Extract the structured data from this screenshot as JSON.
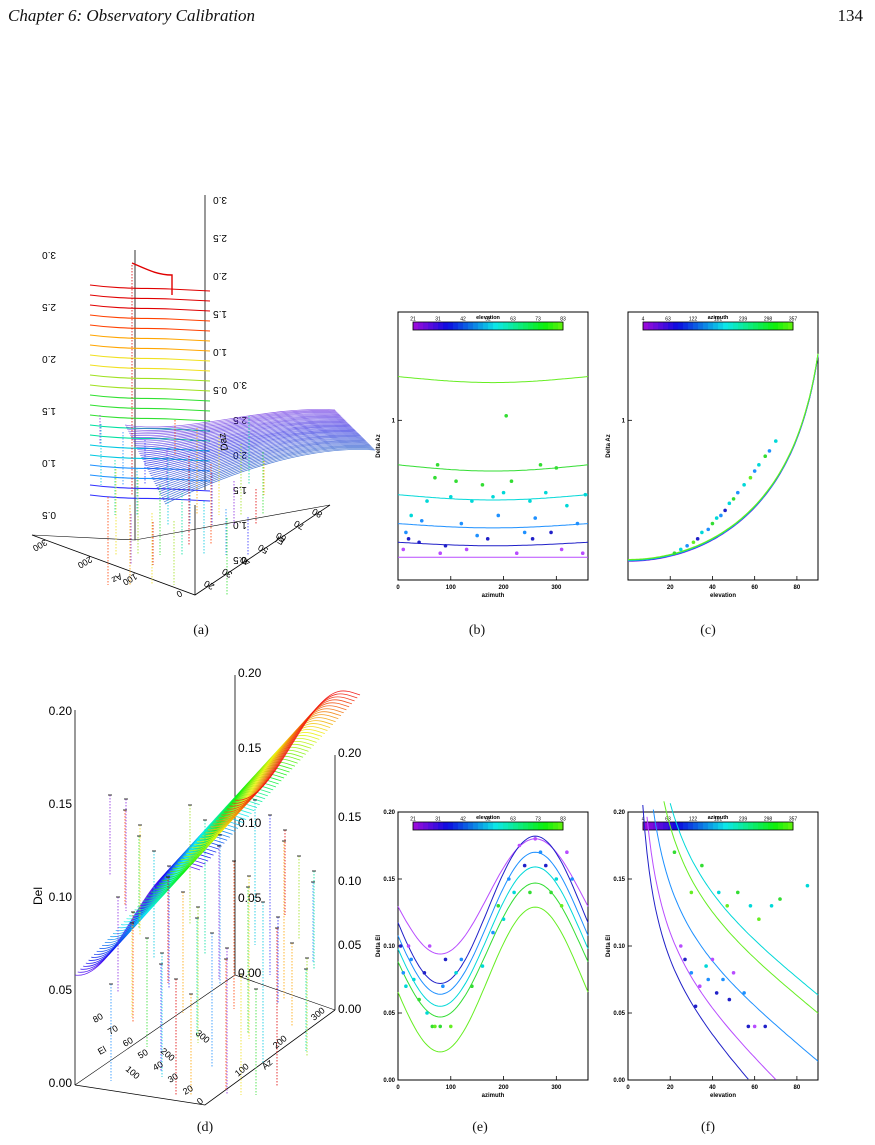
{
  "header": {
    "chapter": "Chapter 6:  Observatory Calibration",
    "page_number": "134"
  },
  "captions": [
    "(a)",
    "(b)",
    "(c)",
    "(d)",
    "(e)",
    "(f)"
  ],
  "panel_a": {
    "z_ticks_left": [
      "0.5",
      "1.0",
      "1.5",
      "2.0",
      "2.5",
      "3.0"
    ],
    "z_ticks_back": [
      "0.5",
      "1.0",
      "1.5",
      "2.0",
      "2.5",
      "3.0"
    ],
    "z_ticks_back2": [
      "0.5",
      "1.0",
      "1.5",
      "2.0",
      "2.5",
      "3.0"
    ],
    "bottom_ticks_az": [
      "0",
      "100",
      "200",
      "300"
    ],
    "bottom_ticks_el": [
      "20",
      "30",
      "40",
      "50",
      "60",
      "70",
      "80"
    ],
    "axis_az": "Az",
    "axis_el": "El",
    "axis_z": "Daz"
  },
  "panel_d": {
    "z_ticks_left": [
      "0.00",
      "0.05",
      "0.10",
      "0.15",
      "0.20"
    ],
    "z_ticks_mid": [
      "0.00",
      "0.05",
      "0.10",
      "0.15",
      "0.20"
    ],
    "z_ticks_right": [
      "0.00",
      "0.05",
      "0.10",
      "0.15",
      "0.20"
    ],
    "el_ticks": [
      "20",
      "30",
      "40",
      "50",
      "60",
      "70",
      "80"
    ],
    "az_ticks": [
      "0",
      "100",
      "200",
      "300"
    ],
    "back_az_ticks": [
      "100",
      "200",
      "300"
    ],
    "axis_z": "Del",
    "axis_az": "Az",
    "axis_el": "El"
  },
  "chart_data": [
    {
      "id": "b",
      "type": "line",
      "xlabel": "azimuth",
      "ylabel": "Delta Az",
      "xlim": [
        0,
        360
      ],
      "xticks": [
        "0",
        "100",
        "200",
        "300"
      ],
      "yticks": [
        {
          "v": 1,
          "label": "1"
        }
      ],
      "colorbar": {
        "title": "elevation",
        "labels": [
          "21",
          "31",
          "42",
          "52",
          "63",
          "73",
          "83"
        ]
      },
      "curves": [
        {
          "color": "#b84cff",
          "y0": 0.23,
          "amp": 0.0
        },
        {
          "color": "#2020c8",
          "y0": 0.27,
          "amp": -0.01
        },
        {
          "color": "#1e90ff",
          "y0": 0.33,
          "amp": -0.015
        },
        {
          "color": "#00d8d8",
          "y0": 0.45,
          "amp": -0.025
        },
        {
          "color": "#33dd33",
          "y0": 0.62,
          "amp": -0.04
        },
        {
          "color": "#66ee22",
          "y0": 1.6,
          "amp": -0.1
        }
      ],
      "points": [
        [
          10,
          0.25,
          "#b84cff"
        ],
        [
          15,
          0.3,
          "#1e90ff"
        ],
        [
          20,
          0.28,
          "#2020c8"
        ],
        [
          25,
          0.36,
          "#00d8d8"
        ],
        [
          40,
          0.27,
          "#2020c8"
        ],
        [
          45,
          0.34,
          "#1e90ff"
        ],
        [
          55,
          0.42,
          "#00d8d8"
        ],
        [
          70,
          0.54,
          "#33dd33"
        ],
        [
          75,
          0.62,
          "#33dd33"
        ],
        [
          80,
          0.24,
          "#b84cff"
        ],
        [
          90,
          0.26,
          "#2020c8"
        ],
        [
          100,
          0.44,
          "#00d8d8"
        ],
        [
          110,
          0.52,
          "#33dd33"
        ],
        [
          120,
          0.33,
          "#1e90ff"
        ],
        [
          130,
          0.25,
          "#b84cff"
        ],
        [
          140,
          0.42,
          "#00d8d8"
        ],
        [
          150,
          0.29,
          "#1e90ff"
        ],
        [
          160,
          0.5,
          "#33dd33"
        ],
        [
          170,
          0.28,
          "#2020c8"
        ],
        [
          180,
          0.44,
          "#00d8d8"
        ],
        [
          190,
          0.36,
          "#1e90ff"
        ],
        [
          200,
          0.46,
          "#00d8d8"
        ],
        [
          205,
          1.05,
          "#33dd33"
        ],
        [
          215,
          0.52,
          "#33dd33"
        ],
        [
          225,
          0.24,
          "#b84cff"
        ],
        [
          240,
          0.3,
          "#1e90ff"
        ],
        [
          250,
          0.42,
          "#00d8d8"
        ],
        [
          255,
          0.28,
          "#2020c8"
        ],
        [
          260,
          0.35,
          "#1e90ff"
        ],
        [
          270,
          0.62,
          "#33dd33"
        ],
        [
          280,
          0.46,
          "#00d8d8"
        ],
        [
          290,
          0.3,
          "#2020c8"
        ],
        [
          300,
          0.6,
          "#33dd33"
        ],
        [
          310,
          0.25,
          "#b84cff"
        ],
        [
          320,
          0.4,
          "#00d8d8"
        ],
        [
          340,
          0.33,
          "#1e90ff"
        ],
        [
          350,
          0.24,
          "#b84cff"
        ],
        [
          355,
          0.45,
          "#00d8d8"
        ]
      ]
    },
    {
      "id": "c",
      "type": "line",
      "xlabel": "elevation",
      "ylabel": "Delta Az",
      "xlim": [
        0,
        90
      ],
      "xticks": [
        "20",
        "40",
        "60",
        "80"
      ],
      "yticks": [
        {
          "v": 1,
          "label": "1"
        }
      ],
      "colorbar": {
        "title": "azimuth",
        "labels": [
          "4",
          "63",
          "122",
          "181",
          "239",
          "298",
          "357"
        ]
      },
      "curves": [
        {
          "color": "#b84cff"
        },
        {
          "color": "#2020c8"
        },
        {
          "color": "#1e90ff"
        },
        {
          "color": "#00d8d8"
        },
        {
          "color": "#33dd33"
        },
        {
          "color": "#66ee22"
        }
      ],
      "points": [
        [
          22,
          0.24,
          "#33dd33"
        ],
        [
          25,
          0.25,
          "#00d8d8"
        ],
        [
          28,
          0.26,
          "#1e90ff"
        ],
        [
          31,
          0.27,
          "#66ee22"
        ],
        [
          33,
          0.28,
          "#2020c8"
        ],
        [
          35,
          0.3,
          "#00d8d8"
        ],
        [
          38,
          0.31,
          "#1e90ff"
        ],
        [
          40,
          0.33,
          "#33dd33"
        ],
        [
          42,
          0.35,
          "#00d8d8"
        ],
        [
          44,
          0.36,
          "#1e90ff"
        ],
        [
          46,
          0.38,
          "#2020c8"
        ],
        [
          48,
          0.41,
          "#00d8d8"
        ],
        [
          50,
          0.43,
          "#33dd33"
        ],
        [
          52,
          0.46,
          "#1e90ff"
        ],
        [
          55,
          0.5,
          "#00d8d8"
        ],
        [
          58,
          0.54,
          "#66ee22"
        ],
        [
          60,
          0.58,
          "#1e90ff"
        ],
        [
          62,
          0.62,
          "#00d8d8"
        ],
        [
          65,
          0.68,
          "#33dd33"
        ],
        [
          67,
          0.72,
          "#1e90ff"
        ],
        [
          70,
          0.8,
          "#00d8d8"
        ]
      ]
    },
    {
      "id": "e",
      "type": "line",
      "xlabel": "azimuth",
      "ylabel": "Delta El",
      "xlim": [
        0,
        360
      ],
      "ylim": [
        0,
        0.2
      ],
      "xticks": [
        "0",
        "100",
        "200",
        "300"
      ],
      "yticks": [
        {
          "v": 0,
          "label": "0.00"
        },
        {
          "v": 0.05,
          "label": "0.05"
        },
        {
          "v": 0.1,
          "label": "0.10"
        },
        {
          "v": 0.15,
          "label": "0.15"
        },
        {
          "v": 0.2,
          "label": "0.20"
        }
      ],
      "colorbar": {
        "title": "elevation",
        "labels": [
          "21",
          "31",
          "42",
          "52",
          "63",
          "73",
          "83"
        ]
      },
      "curves": [
        {
          "color": "#b84cff",
          "mean": 0.137,
          "amp": 0.043
        },
        {
          "color": "#2020c8",
          "mean": 0.127,
          "amp": 0.055
        },
        {
          "color": "#1e90ff",
          "mean": 0.117,
          "amp": 0.053
        },
        {
          "color": "#00d8d8",
          "mean": 0.107,
          "amp": 0.052
        },
        {
          "color": "#33dd33",
          "mean": 0.097,
          "amp": 0.05
        },
        {
          "color": "#66ee22",
          "mean": 0.075,
          "amp": 0.054
        }
      ],
      "points": [
        [
          5,
          0.1,
          "#2020c8"
        ],
        [
          10,
          0.08,
          "#1e90ff"
        ],
        [
          15,
          0.07,
          "#00d8d8"
        ],
        [
          20,
          0.1,
          "#b84cff"
        ],
        [
          25,
          0.09,
          "#1e90ff"
        ],
        [
          30,
          0.075,
          "#00d8d8"
        ],
        [
          40,
          0.06,
          "#33dd33"
        ],
        [
          50,
          0.08,
          "#2020c8"
        ],
        [
          55,
          0.05,
          "#00d8d8"
        ],
        [
          60,
          0.1,
          "#b84cff"
        ],
        [
          65,
          0.04,
          "#33dd33"
        ],
        [
          70,
          0.04,
          "#66ee22"
        ],
        [
          80,
          0.04,
          "#33dd33"
        ],
        [
          85,
          0.07,
          "#1e90ff"
        ],
        [
          90,
          0.09,
          "#2020c8"
        ],
        [
          100,
          0.04,
          "#66ee22"
        ],
        [
          110,
          0.08,
          "#00d8d8"
        ],
        [
          120,
          0.09,
          "#1e90ff"
        ],
        [
          140,
          0.07,
          "#33dd33"
        ],
        [
          160,
          0.085,
          "#00d8d8"
        ],
        [
          180,
          0.11,
          "#1e90ff"
        ],
        [
          190,
          0.13,
          "#33dd33"
        ],
        [
          200,
          0.12,
          "#00d8d8"
        ],
        [
          210,
          0.15,
          "#1e90ff"
        ],
        [
          220,
          0.14,
          "#00d8d8"
        ],
        [
          230,
          0.175,
          "#b84cff"
        ],
        [
          240,
          0.16,
          "#2020c8"
        ],
        [
          250,
          0.14,
          "#33dd33"
        ],
        [
          260,
          0.18,
          "#b84cff"
        ],
        [
          270,
          0.17,
          "#1e90ff"
        ],
        [
          280,
          0.16,
          "#2020c8"
        ],
        [
          290,
          0.14,
          "#33dd33"
        ],
        [
          300,
          0.15,
          "#00d8d8"
        ],
        [
          310,
          0.13,
          "#66ee22"
        ],
        [
          320,
          0.17,
          "#b84cff"
        ],
        [
          330,
          0.15,
          "#1e90ff"
        ]
      ]
    },
    {
      "id": "f",
      "type": "line",
      "xlabel": "elevation",
      "ylabel": "Delta El",
      "xlim": [
        0,
        90
      ],
      "ylim": [
        0,
        0.2
      ],
      "xticks": [
        "0",
        "20",
        "40",
        "60",
        "80"
      ],
      "yticks": [
        {
          "v": 0,
          "label": "0.00"
        },
        {
          "v": 0.05,
          "label": "0.05"
        },
        {
          "v": 0.1,
          "label": "0.10"
        },
        {
          "v": 0.15,
          "label": "0.15"
        },
        {
          "v": 0.2,
          "label": "0.20"
        }
      ],
      "colorbar": {
        "title": "azimuth",
        "labels": [
          "4",
          "63",
          "122",
          "181",
          "239",
          "298",
          "357"
        ]
      },
      "curves": [
        {
          "color": "#2020c8",
          "a": 0.072,
          "b": 1.55
        },
        {
          "color": "#b84cff",
          "a": 0.082,
          "b": 1.35
        },
        {
          "color": "#1e90ff",
          "a": 0.1,
          "b": 1.0
        },
        {
          "color": "#66ee22",
          "a": 0.125,
          "b": 0.85
        },
        {
          "color": "#00d8d8",
          "a": 0.135,
          "b": 0.8
        }
      ],
      "points": [
        [
          22,
          0.17,
          "#33dd33"
        ],
        [
          25,
          0.1,
          "#b84cff"
        ],
        [
          27,
          0.09,
          "#2020c8"
        ],
        [
          30,
          0.08,
          "#1e90ff"
        ],
        [
          30,
          0.14,
          "#66ee22"
        ],
        [
          32,
          0.055,
          "#2020c8"
        ],
        [
          34,
          0.07,
          "#b84cff"
        ],
        [
          35,
          0.16,
          "#33dd33"
        ],
        [
          37,
          0.085,
          "#00d8d8"
        ],
        [
          38,
          0.075,
          "#1e90ff"
        ],
        [
          40,
          0.09,
          "#b84cff"
        ],
        [
          42,
          0.065,
          "#2020c8"
        ],
        [
          43,
          0.14,
          "#00d8d8"
        ],
        [
          45,
          0.075,
          "#1e90ff"
        ],
        [
          47,
          0.13,
          "#66ee22"
        ],
        [
          48,
          0.06,
          "#2020c8"
        ],
        [
          50,
          0.08,
          "#b84cff"
        ],
        [
          52,
          0.14,
          "#33dd33"
        ],
        [
          55,
          0.065,
          "#1e90ff"
        ],
        [
          57,
          0.04,
          "#2020c8"
        ],
        [
          58,
          0.13,
          "#00d8d8"
        ],
        [
          60,
          0.04,
          "#b84cff"
        ],
        [
          62,
          0.12,
          "#66ee22"
        ],
        [
          65,
          0.04,
          "#2020c8"
        ],
        [
          68,
          0.13,
          "#00d8d8"
        ],
        [
          72,
          0.135,
          "#33dd33"
        ],
        [
          85,
          0.145,
          "#00d8d8"
        ]
      ]
    }
  ]
}
